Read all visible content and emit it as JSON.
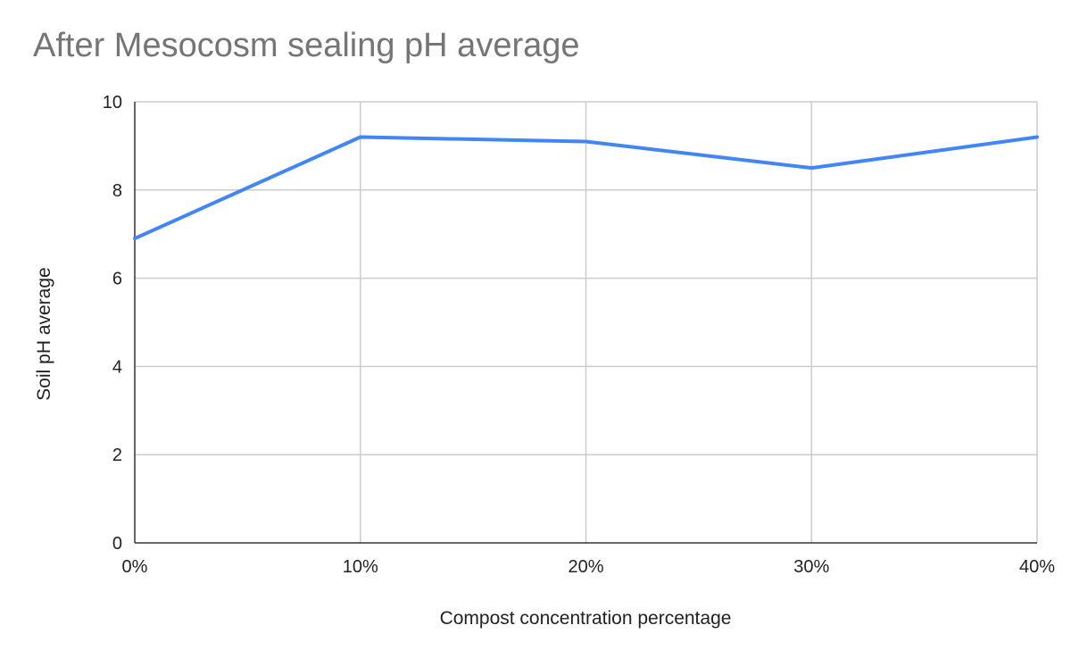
{
  "chart_data": {
    "type": "line",
    "title": "After Mesocosm sealing pH average",
    "xlabel": "Compost concentration percentage",
    "ylabel": "Soil pH average",
    "categories": [
      "0%",
      "10%",
      "20%",
      "30%",
      "40%"
    ],
    "series": [
      {
        "values": [
          6.9,
          9.2,
          9.1,
          8.5,
          9.2
        ]
      }
    ],
    "ylim": [
      0,
      10
    ],
    "yticks": [
      "0",
      "2",
      "4",
      "6",
      "8",
      "10"
    ],
    "grid": true,
    "legend": "none",
    "colors": {
      "line": "#4285f4",
      "grid": "#cccccc",
      "axis": "#333333",
      "title": "#757575",
      "text": "#222222"
    }
  }
}
